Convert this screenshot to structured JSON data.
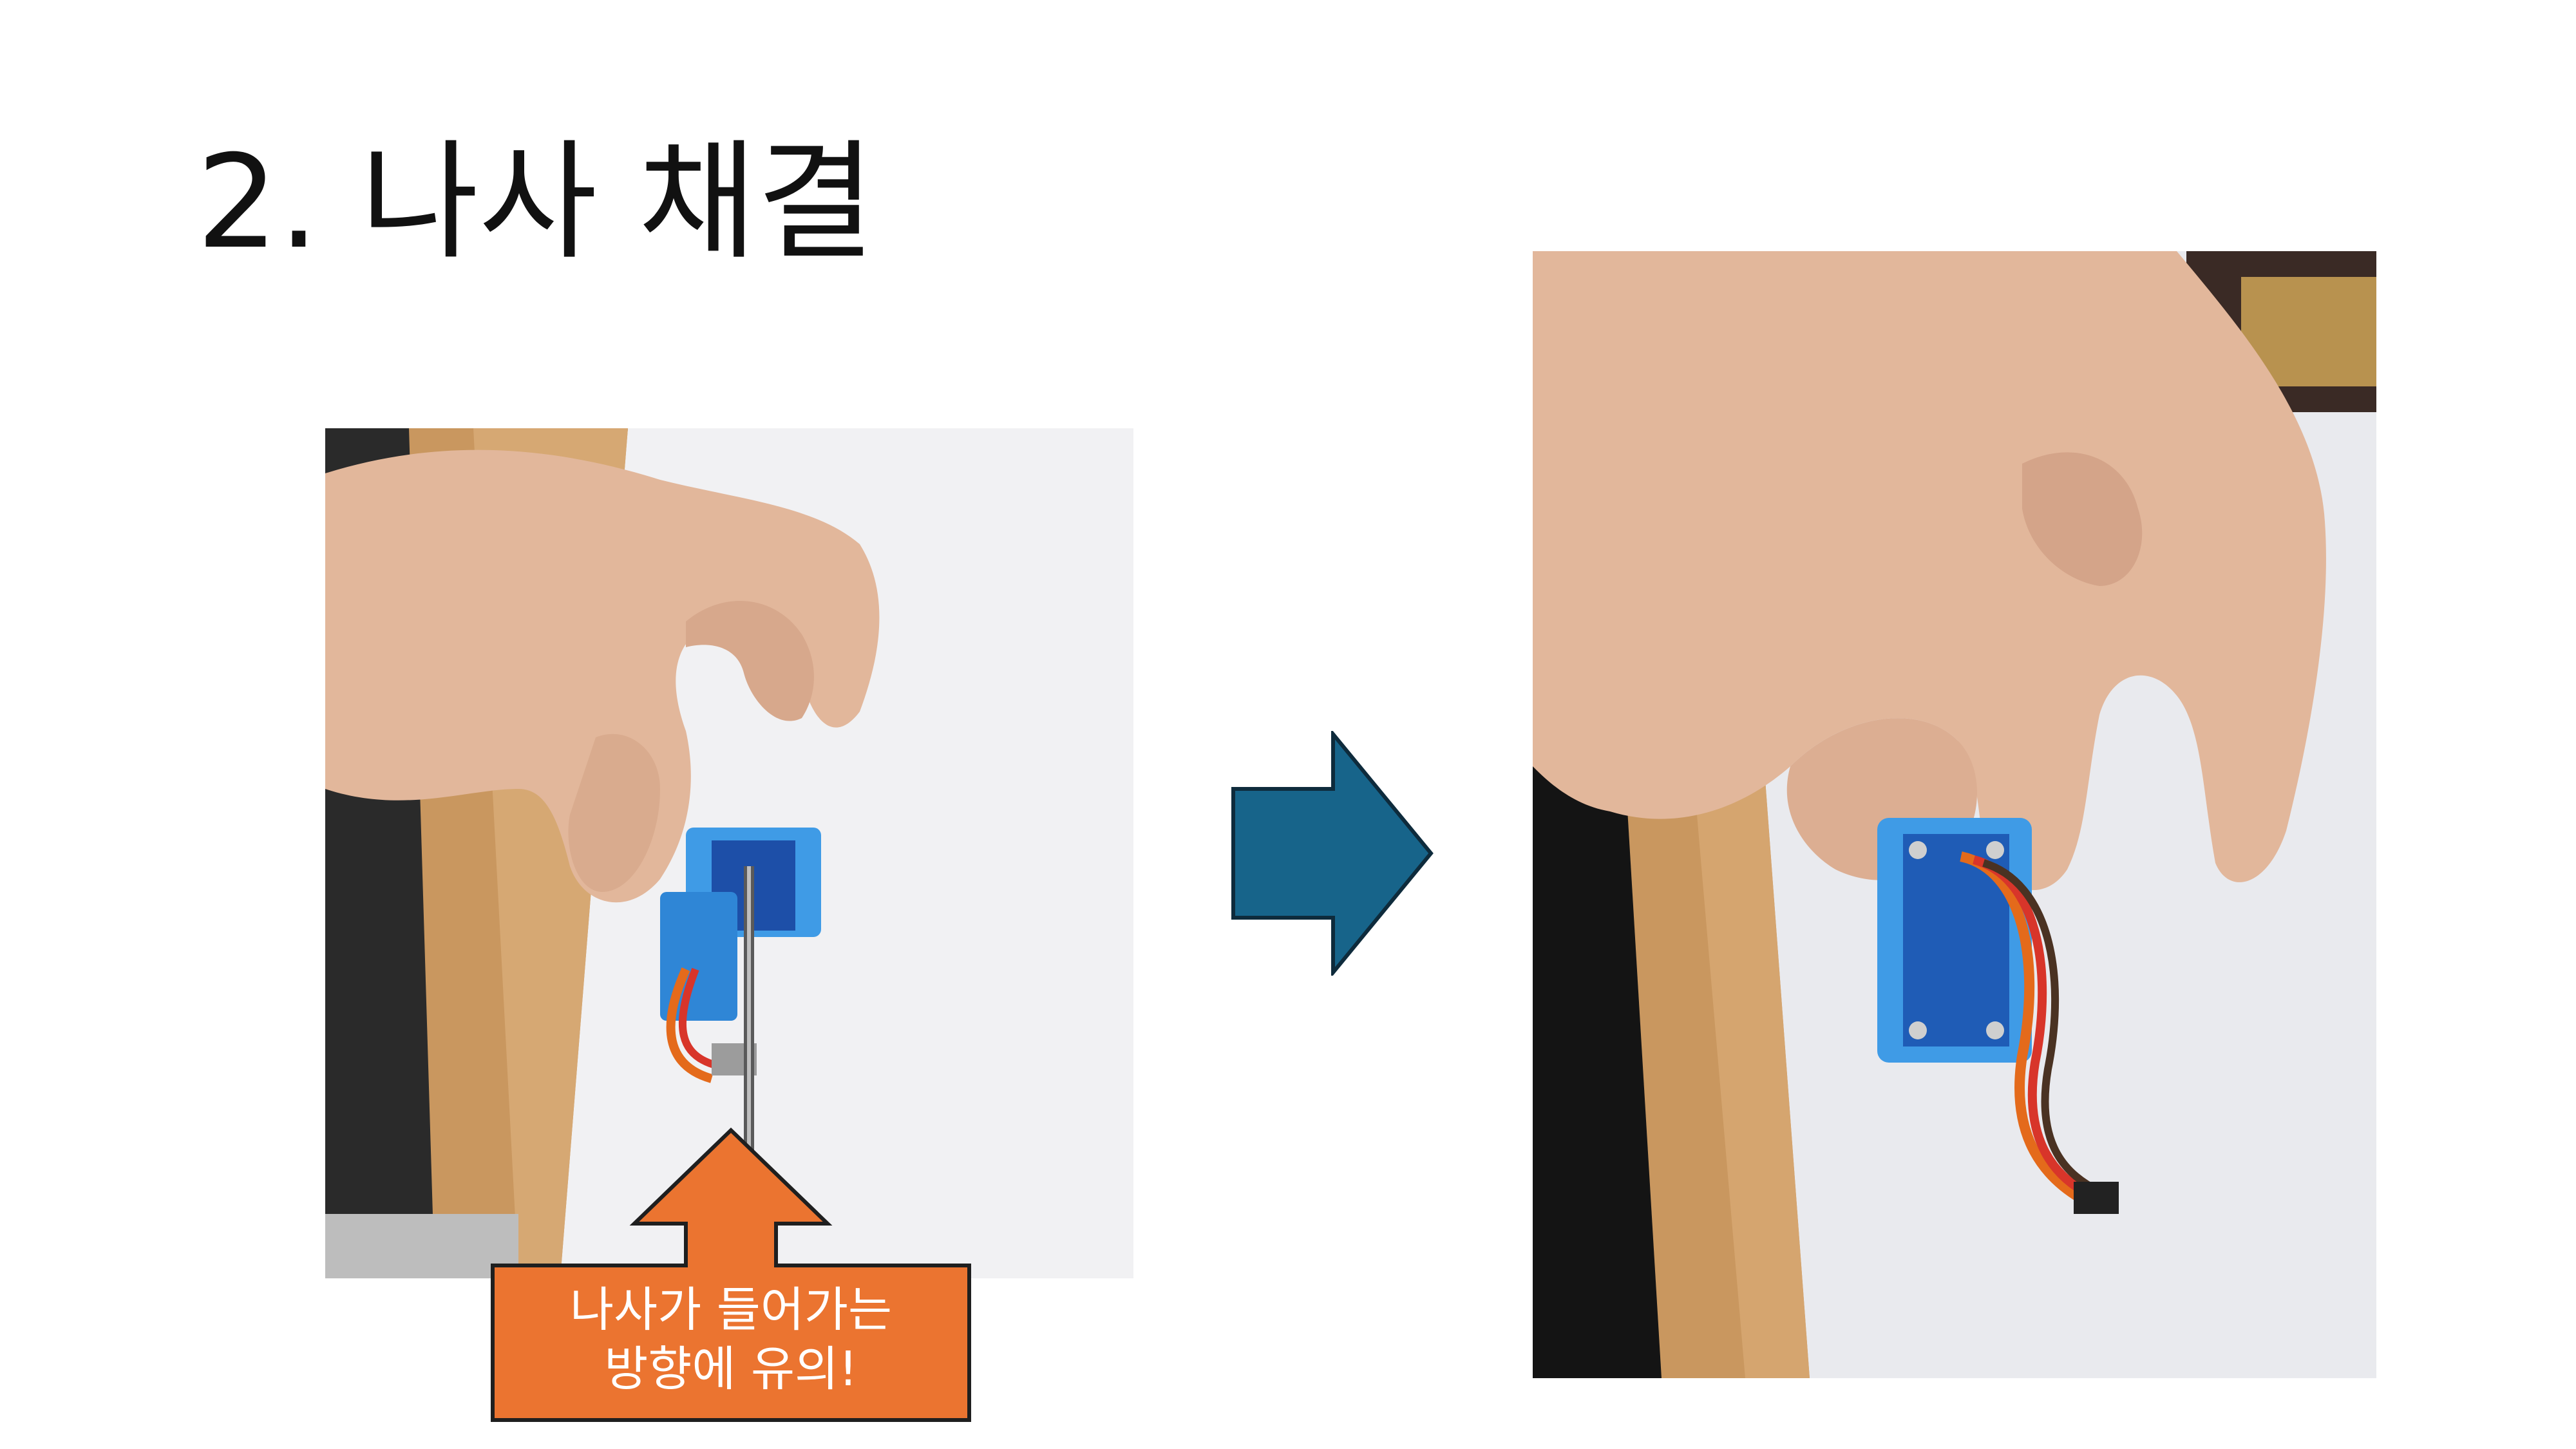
{
  "slide": {
    "title": "2. 나사 채결",
    "callout": {
      "line1": "나사가 들어가는",
      "line2": "방향에 유의!"
    }
  },
  "colors": {
    "arrow_fill": "#17648A",
    "arrow_stroke": "#0E2B3C",
    "callout_fill": "#EB7430",
    "callout_stroke": "#1F1F1F",
    "part_blue": "#3F9BE6",
    "skin": "#E2B79B",
    "desk_wood": "#C9975F"
  },
  "icons": {
    "flow_arrow": "right-arrow-icon",
    "callout_arrow": "up-arrow-callout"
  }
}
